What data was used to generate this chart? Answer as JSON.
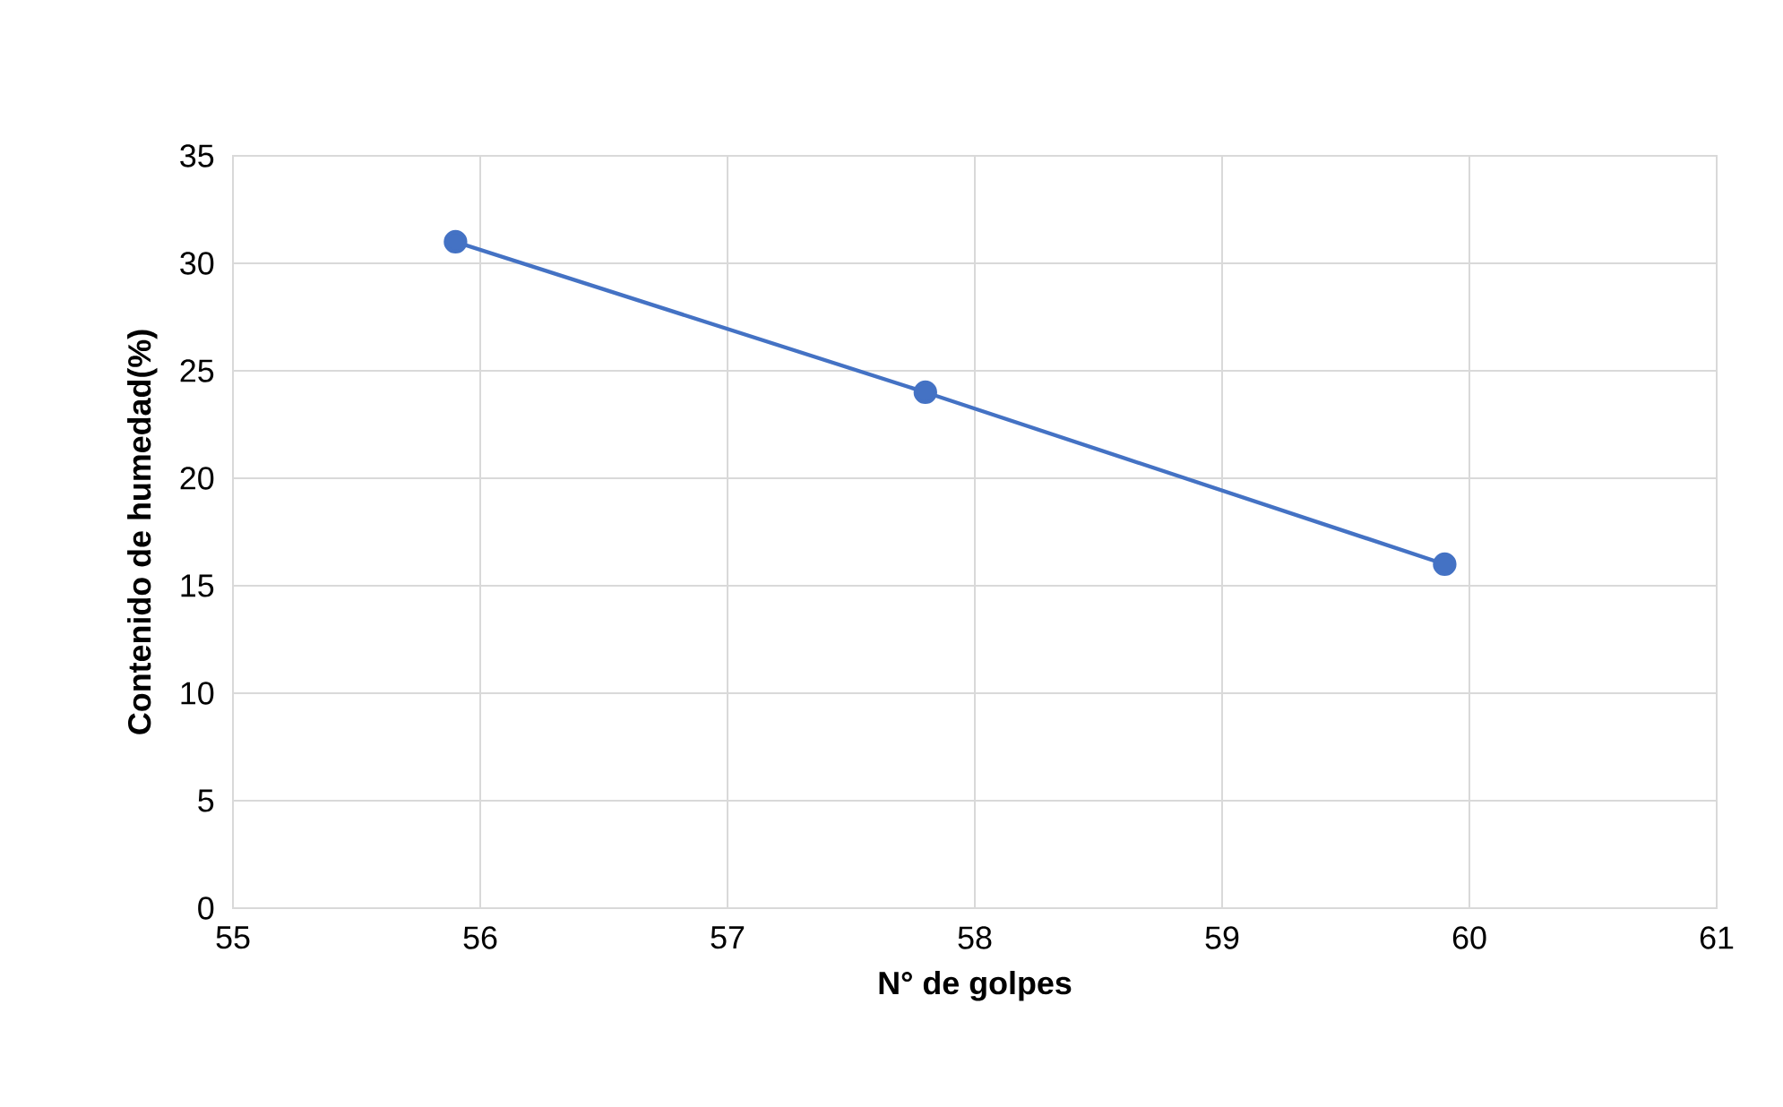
{
  "chart_data": {
    "type": "line",
    "xlabel": "N° de golpes",
    "ylabel": "Contenido de humedad(%)",
    "x": [
      55.9,
      57.8,
      59.9
    ],
    "series": [
      {
        "color": "#4472c4",
        "values": [
          31,
          24,
          16
        ]
      }
    ],
    "xlim": [
      55,
      61
    ],
    "xticks": [
      55,
      56,
      57,
      58,
      59,
      60,
      61
    ],
    "ylim": [
      0,
      35
    ],
    "yticks": [
      0,
      5,
      10,
      15,
      20,
      25,
      30,
      35
    ],
    "grid": true,
    "marker": "circle",
    "line_style": "solid"
  }
}
